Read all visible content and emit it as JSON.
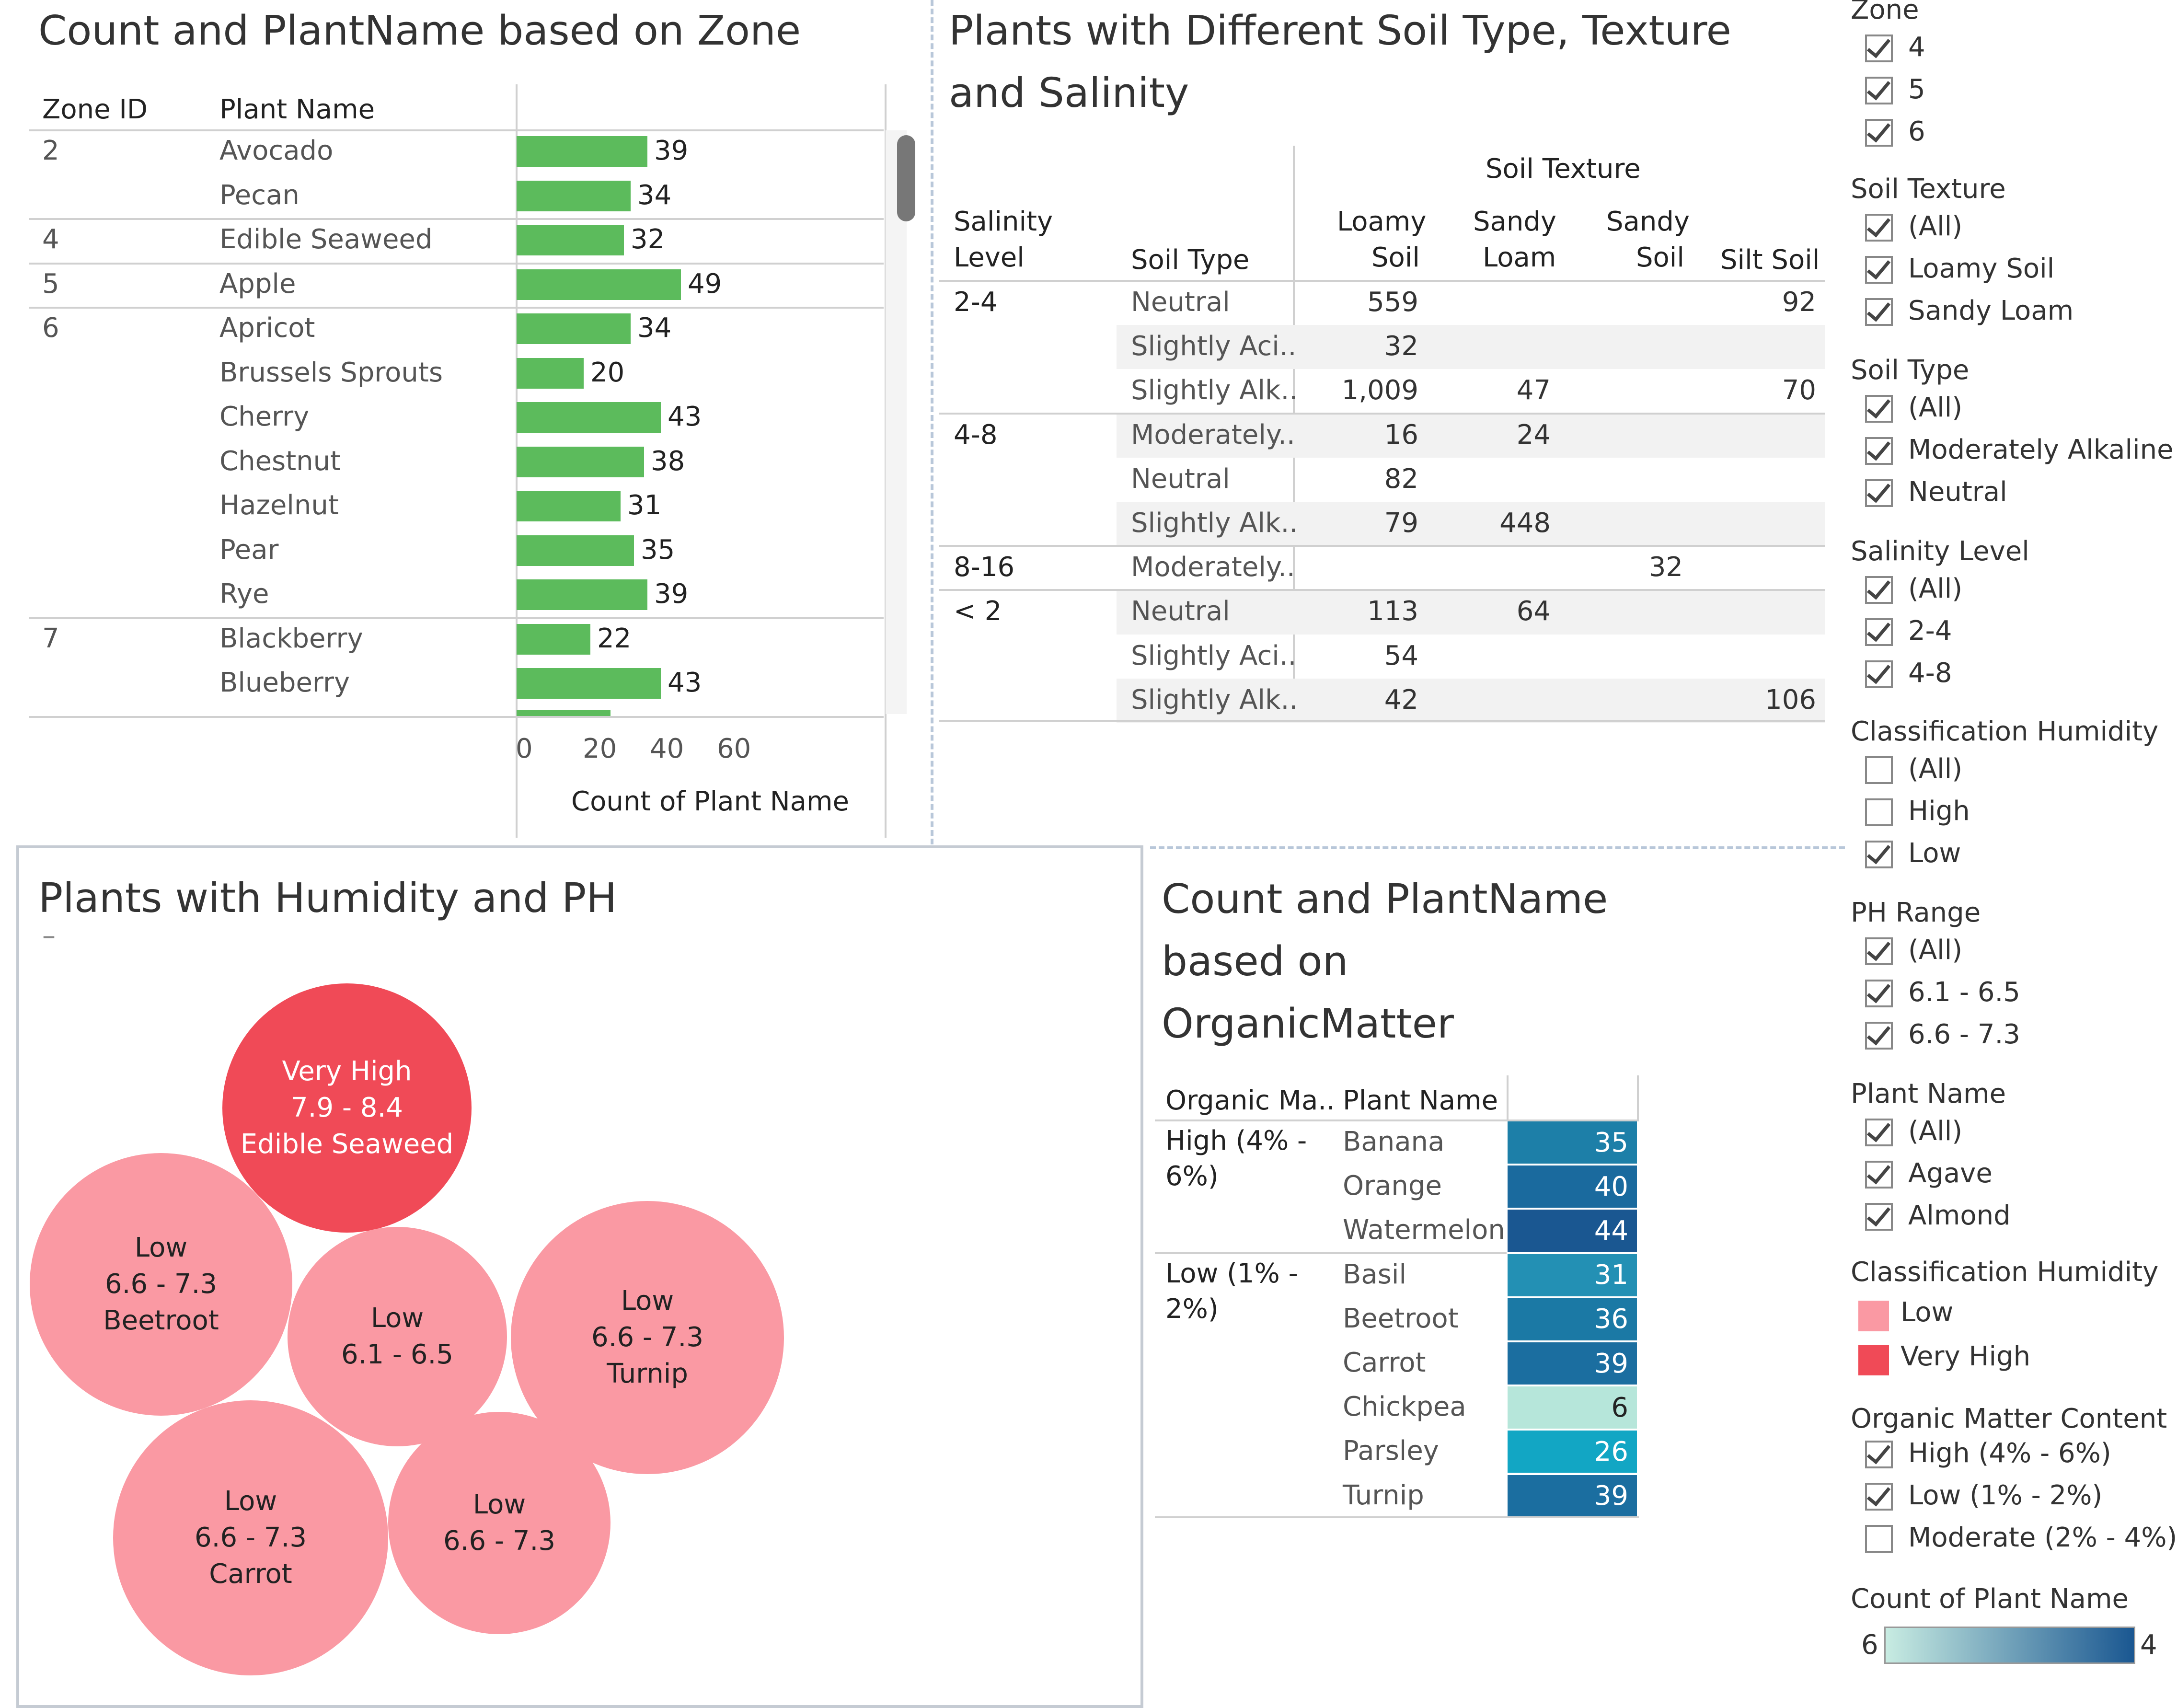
{
  "zone_chart": {
    "title": "Count and PlantName based on Zone",
    "col_zone": "Zone ID",
    "col_plant": "Plant Name",
    "axis_title": "Count of Plant Name",
    "axis_ticks": [
      "0",
      "20",
      "40",
      "60"
    ],
    "rows": [
      {
        "zone": "2",
        "plant": "Avocado",
        "value": 39
      },
      {
        "zone": "",
        "plant": "Pecan",
        "value": 34
      },
      {
        "zone": "4",
        "plant": "Edible Seaweed",
        "value": 32
      },
      {
        "zone": "5",
        "plant": "Apple",
        "value": 49
      },
      {
        "zone": "6",
        "plant": "Apricot",
        "value": 34
      },
      {
        "zone": "",
        "plant": "Brussels Sprouts",
        "value": 20
      },
      {
        "zone": "",
        "plant": "Cherry",
        "value": 43
      },
      {
        "zone": "",
        "plant": "Chestnut",
        "value": 38
      },
      {
        "zone": "",
        "plant": "Hazelnut",
        "value": 31
      },
      {
        "zone": "",
        "plant": "Pear",
        "value": 35
      },
      {
        "zone": "",
        "plant": "Rye",
        "value": 39
      },
      {
        "zone": "7",
        "plant": "Blackberry",
        "value": 22
      },
      {
        "zone": "",
        "plant": "Blueberry",
        "value": 43
      }
    ]
  },
  "soil_table": {
    "title_line1": "Plants with Different Soil Type, Texture",
    "title_line2": "and Salinity",
    "group_header": "Soil Texture",
    "col_salinity_1": "Salinity",
    "col_salinity_2": "Level",
    "col_soil_type": "Soil Type",
    "col_loamy_1": "Loamy",
    "col_loamy_2": "Soil",
    "col_sandyloam_1": "Sandy",
    "col_sandyloam_2": "Loam",
    "col_sandysoil_1": "Sandy",
    "col_sandysoil_2": "Soil",
    "col_silt": "Silt Soil",
    "rows": [
      {
        "salinity": "2-4",
        "type": "Neutral",
        "loamy": "559",
        "sandyloam": "",
        "sandysoil": "",
        "silt": "92"
      },
      {
        "salinity": "",
        "type": "Slightly Aci..",
        "loamy": "32",
        "sandyloam": "",
        "sandysoil": "",
        "silt": ""
      },
      {
        "salinity": "",
        "type": "Slightly Alk..",
        "loamy": "1,009",
        "sandyloam": "47",
        "sandysoil": "",
        "silt": "70"
      },
      {
        "salinity": "4-8",
        "type": "Moderately..",
        "loamy": "16",
        "sandyloam": "24",
        "sandysoil": "",
        "silt": ""
      },
      {
        "salinity": "",
        "type": "Neutral",
        "loamy": "82",
        "sandyloam": "",
        "sandysoil": "",
        "silt": ""
      },
      {
        "salinity": "",
        "type": "Slightly Alk..",
        "loamy": "79",
        "sandyloam": "448",
        "sandysoil": "",
        "silt": ""
      },
      {
        "salinity": "8-16",
        "type": "Moderately..",
        "loamy": "",
        "sandyloam": "",
        "sandysoil": "32",
        "silt": ""
      },
      {
        "salinity": "< 2",
        "type": "Neutral",
        "loamy": "113",
        "sandyloam": "64",
        "sandysoil": "",
        "silt": ""
      },
      {
        "salinity": "",
        "type": "Slightly Aci..",
        "loamy": "54",
        "sandyloam": "",
        "sandysoil": "",
        "silt": ""
      },
      {
        "salinity": "",
        "type": "Slightly Alk..",
        "loamy": "42",
        "sandyloam": "",
        "sandysoil": "",
        "silt": "106"
      }
    ]
  },
  "bubbles": {
    "title": "Plants with Humidity and PH",
    "subtitle_mark": "–",
    "items": [
      {
        "l1": "Very High",
        "l2": "7.9 - 8.4",
        "l3": "Edible Seaweed",
        "color": "#f04a57",
        "text_color": "#ffffff"
      },
      {
        "l1": "Low",
        "l2": "6.6 - 7.3",
        "l3": "Beetroot",
        "color": "#fa99a3",
        "text_color": "#222222"
      },
      {
        "l1": "Low",
        "l2": "6.1 - 6.5",
        "l3": "",
        "color": "#fa99a3",
        "text_color": "#222222"
      },
      {
        "l1": "Low",
        "l2": "6.6 - 7.3",
        "l3": "Turnip",
        "color": "#fa99a3",
        "text_color": "#222222"
      },
      {
        "l1": "Low",
        "l2": "6.6 - 7.3",
        "l3": "Carrot",
        "color": "#fa99a3",
        "text_color": "#222222"
      },
      {
        "l1": "Low",
        "l2": "6.6 - 7.3",
        "l3": "",
        "color": "#fa99a3",
        "text_color": "#222222"
      }
    ]
  },
  "organic_table": {
    "title_line1": "Count and PlantName",
    "title_line2": "based on",
    "title_line3": "OrganicMatter",
    "col_organic": "Organic Ma..",
    "col_plant": "Plant Name",
    "groups": [
      {
        "label_1": "High (4% -",
        "label_2": "6%)"
      },
      {
        "label_1": "Low (1% -",
        "label_2": "2%)"
      }
    ],
    "rows": [
      {
        "plant": "Banana",
        "value": "35",
        "color": "#1d7fa8"
      },
      {
        "plant": "Orange",
        "value": "40",
        "color": "#1a6a9e"
      },
      {
        "plant": "Watermelon",
        "value": "44",
        "color": "#1a5791"
      },
      {
        "plant": "Basil",
        "value": "31",
        "color": "#2390b4"
      },
      {
        "plant": "Beetroot",
        "value": "36",
        "color": "#1b79a5"
      },
      {
        "plant": "Carrot",
        "value": "39",
        "color": "#1b6ea0"
      },
      {
        "plant": "Chickpea",
        "value": "6",
        "color": "#b6e6da"
      },
      {
        "plant": "Parsley",
        "value": "26",
        "color": "#12a6c4"
      },
      {
        "plant": "Turnip",
        "value": "39",
        "color": "#1b6ea0"
      }
    ]
  },
  "filters": {
    "zone": {
      "title": "Zone",
      "items": [
        {
          "label": "4",
          "checked": true
        },
        {
          "label": "5",
          "checked": true
        },
        {
          "label": "6",
          "checked": true
        }
      ]
    },
    "soil_texture": {
      "title": "Soil Texture",
      "items": [
        {
          "label": "(All)",
          "checked": true
        },
        {
          "label": "Loamy Soil",
          "checked": true
        },
        {
          "label": "Sandy Loam",
          "checked": true
        }
      ]
    },
    "soil_type": {
      "title": "Soil Type",
      "items": [
        {
          "label": "(All)",
          "checked": true
        },
        {
          "label": "Moderately Alkaline",
          "checked": true
        },
        {
          "label": "Neutral",
          "checked": true
        }
      ]
    },
    "salinity": {
      "title": "Salinity Level",
      "items": [
        {
          "label": "(All)",
          "checked": true
        },
        {
          "label": "2-4",
          "checked": true
        },
        {
          "label": "4-8",
          "checked": true
        }
      ]
    },
    "humidity": {
      "title": "Classification Humidity",
      "items": [
        {
          "label": "(All)",
          "checked": false
        },
        {
          "label": "High",
          "checked": false
        },
        {
          "label": "Low",
          "checked": true
        }
      ]
    },
    "ph": {
      "title": "PH Range",
      "items": [
        {
          "label": "(All)",
          "checked": true
        },
        {
          "label": "6.1 - 6.5",
          "checked": true
        },
        {
          "label": "6.6 - 7.3",
          "checked": true
        }
      ]
    },
    "plant": {
      "title": "Plant Name",
      "items": [
        {
          "label": "(All)",
          "checked": true
        },
        {
          "label": "Agave",
          "checked": true
        },
        {
          "label": "Almond",
          "checked": true
        }
      ]
    },
    "humidity_legend": {
      "title": "Classification Humidity",
      "items": [
        {
          "label": "Low",
          "color": "#fa99a3"
        },
        {
          "label": "Very High",
          "color": "#f04a57"
        }
      ]
    },
    "organic": {
      "title": "Organic Matter Content",
      "items": [
        {
          "label": "High (4% - 6%)",
          "checked": true
        },
        {
          "label": "Low (1% - 2%)",
          "checked": true
        },
        {
          "label": "Moderate (2% - 4%)",
          "checked": false
        }
      ]
    },
    "count_legend": {
      "title": "Count of Plant Name",
      "min": "6",
      "max_partial": "4",
      "color_low": "#c8ece2",
      "color_high": "#1a5791"
    }
  }
}
